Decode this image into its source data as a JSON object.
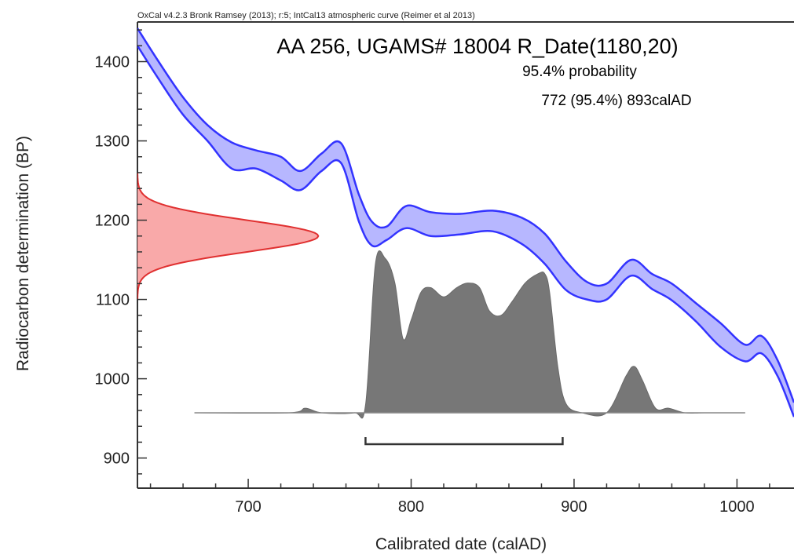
{
  "chart_data": {
    "type": "area",
    "header": "OxCal v4.2.3 Bronk Ramsey (2013); r:5; IntCal13 atmospheric curve (Reimer et al 2013)",
    "title": "AA 256, UGAMS# 18004 R_Date(1180,20)",
    "probability_label": "95.4% probability",
    "range_label": "772 (95.4%) 893calAD",
    "xlabel": "Calibrated date (calAD)",
    "ylabel": "Radiocarbon determination (BP)",
    "xlim": [
      632,
      1035
    ],
    "ylim": [
      862,
      1450
    ],
    "x_ticks": [
      700,
      800,
      900,
      1000
    ],
    "y_ticks": [
      900,
      1000,
      1100,
      1200,
      1300,
      1400
    ],
    "calibration_curve": {
      "x": [
        632,
        645,
        660,
        675,
        690,
        705,
        720,
        732,
        745,
        757,
        768,
        776,
        785,
        797,
        812,
        830,
        850,
        868,
        882,
        895,
        908,
        920,
        935,
        948,
        960,
        975,
        990,
        1005,
        1015,
        1025,
        1035
      ],
      "upper": [
        1442,
        1400,
        1355,
        1320,
        1298,
        1288,
        1280,
        1262,
        1284,
        1297,
        1232,
        1198,
        1192,
        1218,
        1210,
        1208,
        1212,
        1203,
        1183,
        1148,
        1122,
        1120,
        1150,
        1132,
        1120,
        1095,
        1070,
        1043,
        1054,
        1023,
        970
      ],
      "lower": [
        1420,
        1378,
        1333,
        1300,
        1265,
        1265,
        1250,
        1238,
        1262,
        1272,
        1198,
        1168,
        1175,
        1190,
        1180,
        1182,
        1186,
        1170,
        1145,
        1112,
        1100,
        1100,
        1130,
        1113,
        1099,
        1072,
        1040,
        1022,
        1032,
        1003,
        952
      ],
      "color": "#3333ff",
      "fill": "#aaaaff"
    },
    "radiocarbon_date": {
      "mean": 1180,
      "sd": 20,
      "color": "#e03030",
      "fill": "#f8a0a0",
      "amplitude_years": 111
    },
    "posterior": {
      "x": [
        667,
        725,
        735,
        745,
        765,
        772,
        778,
        784,
        790,
        795,
        800,
        806,
        812,
        820,
        828,
        835,
        842,
        848,
        855,
        862,
        870,
        878,
        882,
        885,
        890,
        895,
        905,
        920,
        932,
        937,
        942,
        950,
        958,
        968,
        980,
        1005
      ],
      "height": [
        0,
        0,
        0.03,
        0,
        0,
        0.05,
        0.96,
        1.0,
        0.84,
        0.48,
        0.6,
        0.78,
        0.81,
        0.75,
        0.81,
        0.84,
        0.81,
        0.66,
        0.63,
        0.72,
        0.84,
        0.9,
        0.9,
        0.78,
        0.3,
        0.06,
        0,
        0,
        0.24,
        0.3,
        0.21,
        0.03,
        0.03,
        0,
        0,
        0
      ],
      "color": "#777777",
      "baseline_bp": 957,
      "peak_bp": 1152
    },
    "range_bracket": {
      "from": 772,
      "to": 893
    }
  }
}
